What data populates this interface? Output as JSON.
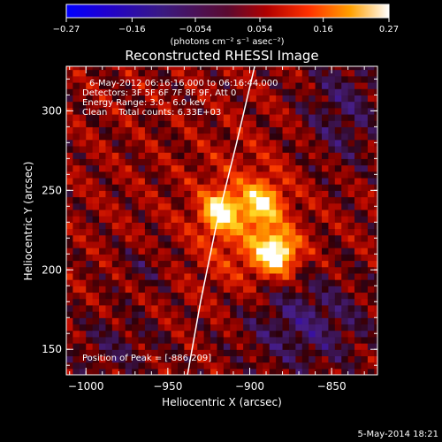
{
  "chart_data": {
    "type": "heatmap",
    "title": "Reconstructed RHESSI Image",
    "xlabel": "Heliocentric X (arcsec)",
    "ylabel": "Heliocentric Y (arcsec)",
    "xlim": [
      -1012,
      -822
    ],
    "ylim": [
      134,
      328
    ],
    "x_ticks": [
      -1000,
      -950,
      -900,
      -850
    ],
    "y_ticks": [
      150,
      200,
      250,
      300
    ],
    "colorbar": {
      "min": -0.27,
      "max": 0.27,
      "ticks": [
        -0.27,
        -0.16,
        -0.054,
        0.054,
        0.16,
        0.27
      ],
      "tick_labels": [
        "-0.27",
        "-0.16",
        "-0.054",
        "0.054",
        "0.16",
        "0.27"
      ],
      "unit_label": "(photons cm⁻² s⁻¹ asec⁻²)"
    },
    "annotations": [
      "6-May-2012 06:16:16.000 to 06:16:44.000",
      "Detectors: 3F 5F 6F 7F 8F 9F, Att 0",
      "Energy Range: 3.0 - 6.0 keV",
      "Clean    Total counts: 6.33E+03"
    ],
    "peak_label": "Position of Peak = [-886,209]",
    "peak": [
      -886,
      209
    ],
    "secondary_sources": [
      [
        -920,
        235
      ],
      [
        -895,
        240
      ]
    ],
    "limb_curve": [
      [
        -938,
        134
      ],
      [
        -930,
        180
      ],
      [
        -920,
        230
      ],
      [
        -908,
        280
      ],
      [
        -897,
        328
      ]
    ],
    "timestamp": "5-May-2014 18:21"
  }
}
